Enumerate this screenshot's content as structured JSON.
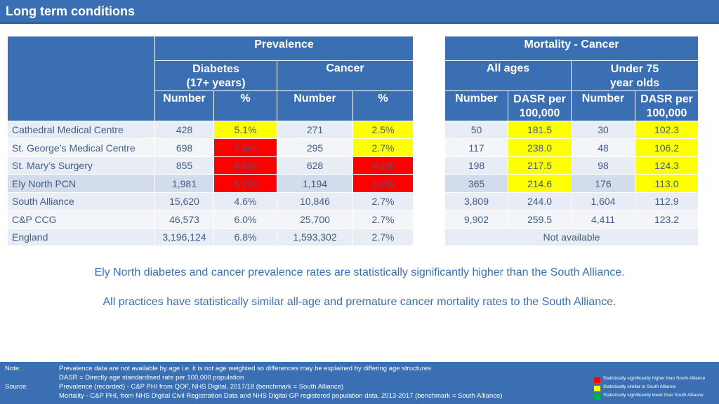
{
  "page_title": "Long term conditions",
  "prevalence": {
    "header": "Prevalence",
    "diabetes_header": "Diabetes\n(17+ years)",
    "cancer_header": "Cancer",
    "col_number": "Number",
    "col_percent": "%"
  },
  "mortality": {
    "header": "Mortality - Cancer",
    "all_ages_header": "All ages",
    "under75_header": "Under 75\nyear olds",
    "col_number": "Number",
    "col_dasr": "DASR per\n100,000"
  },
  "rows": [
    {
      "name": "Cathedral Medical Centre",
      "diab_num": "428",
      "diab_pct": "5.1%",
      "canc_num": "271",
      "canc_pct": "2.5%",
      "all_num": "50",
      "all_dasr": "181.5",
      "u75_num": "30",
      "u75_dasr": "102.3"
    },
    {
      "name": "St. George’s Medical Centre",
      "diab_num": "698",
      "diab_pct": "7.9%",
      "canc_num": "295",
      "canc_pct": "2.7%",
      "all_num": "117",
      "all_dasr": "238.0",
      "u75_num": "48",
      "u75_dasr": "106.2"
    },
    {
      "name": "St. Mary’s Surgery",
      "diab_num": "855",
      "diab_pct": "6.8%",
      "canc_num": "628",
      "canc_pct": "4.1%",
      "all_num": "198",
      "all_dasr": "217.5",
      "u75_num": "98",
      "u75_dasr": "124.3"
    },
    {
      "name": "Ely North PCN",
      "diab_num": "1,981",
      "diab_pct": "6.7%",
      "canc_num": "1,194",
      "canc_pct": "3.2%",
      "all_num": "365",
      "all_dasr": "214.6",
      "u75_num": "176",
      "u75_dasr": "113.0"
    },
    {
      "name": "South Alliance",
      "diab_num": "15,620",
      "diab_pct": "4.6%",
      "canc_num": "10,846",
      "canc_pct": "2.7%",
      "all_num": "3,809",
      "all_dasr": "244.0",
      "u75_num": "1,604",
      "u75_dasr": "112.9"
    },
    {
      "name": "C&P CCG",
      "diab_num": "46,573",
      "diab_pct": "6.0%",
      "canc_num": "25,700",
      "canc_pct": "2.7%",
      "all_num": "9,902",
      "all_dasr": "259.5",
      "u75_num": "4,411",
      "u75_dasr": "123.2"
    },
    {
      "name": "England",
      "diab_num": "3,196,124",
      "diab_pct": "6.8%",
      "canc_num": "1,593,302",
      "canc_pct": "2.7%"
    }
  ],
  "england_mortality_note": "Not available",
  "summary": {
    "line1": "Ely North diabetes and cancer prevalence rates are statistically significantly higher than the South Alliance.",
    "line2": "All practices have statistically similar all-age and premature cancer mortality rates to the South Alliance."
  },
  "footer": {
    "note_label": "Note:",
    "note_line1": "Prevalence data are not available by age i.e. it is not age weighted so differences may be explained by differing age structures",
    "note_line2": "DASR = Directly age standardised rate per 100,000 population",
    "source_label": "Source:",
    "source_line1": "Prevalence (recorded) - C&P PHI from QOF, NHS Digital, 2017/18 (benchmark = South Alliance)",
    "source_line2": "Mortality - C&P PHI, from NHS Digital Civil Registration Data and NHS Digital GP registered population data, 2013-2017 (benchmark = South Alliance)"
  },
  "legend": [
    {
      "label": "Statistically significantly higher than South Alliance",
      "color": "#ff0000"
    },
    {
      "label": "Statistically similar to South Alliance",
      "color": "#ffff00"
    },
    {
      "label": "Statistically significantly lower than South Alliance",
      "color": "#00b050"
    }
  ]
}
